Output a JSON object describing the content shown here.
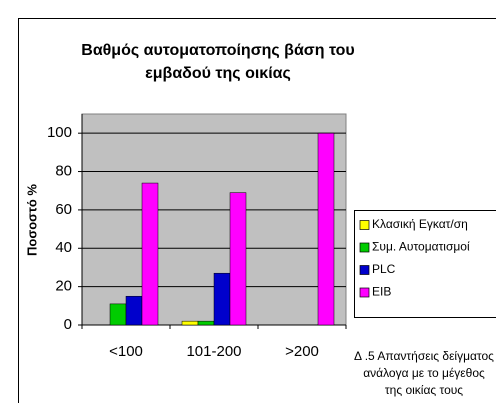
{
  "chart_data": {
    "type": "bar",
    "title": [
      "Βαθμός αυτοματοποίησης βάση του",
      "εμβαδού της οικίας"
    ],
    "ylabel": "Ποσοστό %",
    "categories": [
      "<100",
      "101-200",
      ">200"
    ],
    "series": [
      {
        "name": "Κλασική Εγκατ/ση",
        "color": "#ffff00",
        "values": [
          0,
          2,
          0
        ]
      },
      {
        "name": "Συμ. Αυτοματισμοί",
        "color": "#00cc00",
        "values": [
          11,
          2,
          0
        ]
      },
      {
        "name": "PLC",
        "color": "#0000cc",
        "values": [
          15,
          27,
          0
        ]
      },
      {
        "name": "EIB",
        "color": "#ff00ff",
        "values": [
          74,
          69,
          100
        ]
      }
    ],
    "ylim": [
      0,
      110
    ],
    "yticks": [
      0,
      20,
      40,
      60,
      80,
      100
    ],
    "grid": true,
    "legend": "right",
    "caption": [
      "Δ .5 Απαντήσεις δείγματος",
      "ανάλογα με το μέγεθος",
      "της οικίας τους"
    ]
  }
}
